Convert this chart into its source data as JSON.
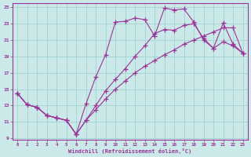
{
  "xlabel": "Windchill (Refroidissement éolien,°C)",
  "background_color": "#cbe9e9",
  "grid_color": "#a8d4d4",
  "line_color": "#993399",
  "xlim_min": -0.5,
  "xlim_max": 23.5,
  "ylim_min": 8.8,
  "ylim_max": 25.5,
  "xticks": [
    0,
    1,
    2,
    3,
    4,
    5,
    6,
    7,
    8,
    9,
    10,
    11,
    12,
    13,
    14,
    15,
    16,
    17,
    18,
    19,
    20,
    21,
    22,
    23
  ],
  "yticks": [
    9,
    11,
    13,
    15,
    17,
    19,
    21,
    23,
    25
  ],
  "line1_x": [
    0,
    1,
    2,
    3,
    4,
    5,
    6,
    7,
    8,
    9,
    10,
    11,
    12,
    13,
    14,
    15,
    16,
    17,
    18,
    19,
    20,
    21,
    22,
    23
  ],
  "line1_y": [
    14.5,
    13.1,
    12.8,
    11.8,
    11.5,
    11.2,
    9.5,
    13.2,
    16.5,
    19.2,
    23.2,
    23.3,
    23.7,
    23.5,
    21.5,
    24.9,
    24.7,
    24.8,
    23.2,
    21.0,
    20.0,
    23.1,
    20.5,
    19.4
  ],
  "line2_x": [
    0,
    1,
    2,
    3,
    4,
    5,
    6,
    7,
    8,
    9,
    10,
    11,
    12,
    13,
    14,
    15,
    16,
    17,
    18,
    19,
    20,
    21,
    22,
    23
  ],
  "line2_y": [
    14.5,
    13.1,
    12.8,
    11.8,
    11.5,
    11.2,
    9.5,
    11.2,
    13.0,
    14.8,
    16.2,
    17.5,
    19.0,
    20.3,
    21.8,
    22.3,
    22.2,
    22.8,
    23.0,
    21.2,
    20.0,
    20.8,
    20.3,
    19.4
  ],
  "line3_x": [
    0,
    1,
    2,
    3,
    4,
    5,
    6,
    7,
    8,
    9,
    10,
    11,
    12,
    13,
    14,
    15,
    16,
    17,
    18,
    19,
    20,
    21,
    22,
    23
  ],
  "line3_y": [
    14.5,
    13.1,
    12.8,
    11.8,
    11.5,
    11.2,
    9.5,
    11.2,
    12.5,
    13.8,
    15.0,
    16.0,
    17.0,
    17.8,
    18.5,
    19.2,
    19.8,
    20.5,
    21.0,
    21.5,
    22.0,
    22.5,
    22.5,
    19.4
  ]
}
